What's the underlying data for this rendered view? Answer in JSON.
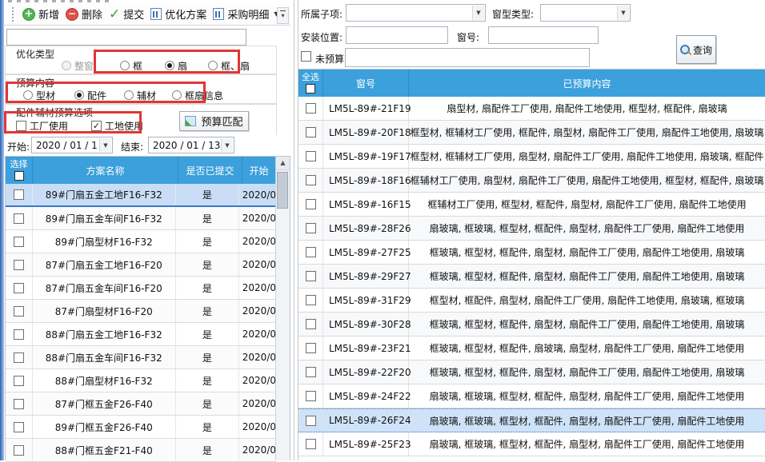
{
  "colors": {
    "header_blue": "#3BA0DB",
    "selected_row_blue": "#C9DEF6",
    "annotation_red": "#E23535",
    "add_green": "#53B553",
    "delete_red": "#E05048"
  },
  "left_panel": {
    "toolbar": {
      "items": [
        {
          "label": "新增",
          "icon": "add-icon"
        },
        {
          "label": "删除",
          "icon": "delete-icon"
        },
        {
          "label": "提交",
          "icon": "check-icon"
        },
        {
          "label": "优化方案",
          "icon": "report-icon"
        },
        {
          "label": "采购明细",
          "icon": "report-icon",
          "has_dropdown": true
        }
      ]
    },
    "filter_input": {
      "value": ""
    },
    "optimize_type": {
      "title": "优化类型",
      "options": [
        {
          "label": "整窗",
          "selected": false,
          "disabled": true
        },
        {
          "label": "框",
          "selected": false
        },
        {
          "label": "扇",
          "selected": true
        },
        {
          "label": "框、扇",
          "selected": false
        }
      ]
    },
    "budget_content": {
      "title": "预算内容",
      "options": [
        {
          "label": "型材",
          "selected": false
        },
        {
          "label": "配件",
          "selected": true
        },
        {
          "label": "辅材",
          "selected": false
        },
        {
          "label": "框扇信息",
          "selected": false
        }
      ]
    },
    "usage_options": {
      "title": "配件辅材预算选项",
      "checkboxes": [
        {
          "label": "工厂使用",
          "checked": false
        },
        {
          "label": "工地使用",
          "checked": true
        }
      ],
      "match_button_label": "预算匹配"
    },
    "date_range": {
      "start_label": "开始:",
      "start_value": "2020 / 01 / 1",
      "end_label": "结束:",
      "end_value": "2020 / 01 / 13"
    },
    "plan_table": {
      "headers": {
        "select": "选择",
        "name": "方案名称",
        "submitted": "是否已提交",
        "start": "开始"
      },
      "rows": [
        {
          "name": "89#门扇五金工地F16-F32",
          "submitted": "是",
          "start": "2020/0",
          "selected": true
        },
        {
          "name": "89#门扇五金车间F16-F32",
          "submitted": "是",
          "start": "2020/0"
        },
        {
          "name": "89#门扇型材F16-F32",
          "submitted": "是",
          "start": "2020/0"
        },
        {
          "name": "87#门扇五金工地F16-F20",
          "submitted": "是",
          "start": "2020/0"
        },
        {
          "name": "87#门扇五金车间F16-F20",
          "submitted": "是",
          "start": "2020/0"
        },
        {
          "name": "87#门扇型材F16-F20",
          "submitted": "是",
          "start": "2020/0"
        },
        {
          "name": "88#门扇五金工地F16-F32",
          "submitted": "是",
          "start": "2020/0"
        },
        {
          "name": "88#门扇五金车间F16-F32",
          "submitted": "是",
          "start": "2020/0"
        },
        {
          "name": "88#门扇型材F16-F32",
          "submitted": "是",
          "start": "2020/0"
        },
        {
          "name": "87#门框五金F26-F40",
          "submitted": "是",
          "start": "2020/0"
        },
        {
          "name": "89#门框五金F26-F40",
          "submitted": "是",
          "start": "2020/0"
        },
        {
          "name": "88#门框五金F21-F40",
          "submitted": "是",
          "start": "2020/0"
        }
      ]
    }
  },
  "right_panel": {
    "filters": {
      "sub_item_label": "所属子项:",
      "window_type_label": "窗型类型:",
      "install_pos_label": "安装位置:",
      "window_no_label": "窗号:",
      "no_budget_label": "未预算:",
      "sub_item_value": "",
      "window_type_value": "",
      "install_pos_value": "",
      "window_no_value": "",
      "no_budget_value": "",
      "query_button_label": "查询"
    },
    "window_table": {
      "headers": {
        "select_all": "全选",
        "window_no": "窗号",
        "budgeted": "已预算内容"
      },
      "rows": [
        {
          "no": "LM5L-89#-21F19",
          "content": "扇型材, 扇配件工厂使用, 扇配件工地使用, 框型材, 框配件, 扇玻璃"
        },
        {
          "no": "LM5L-89#-20F18",
          "content": "框型材, 框辅材工厂使用, 框配件, 扇型材, 扇配件工厂使用, 扇配件工地使用, 扇玻璃"
        },
        {
          "no": "LM5L-89#-19F17",
          "content": "框型材, 框辅材工厂使用, 扇型材, 扇配件工厂使用, 扇配件工地使用, 扇玻璃, 框配件"
        },
        {
          "no": "LM5L-89#-18F16",
          "content": "框辅材工厂使用, 扇型材, 扇配件工厂使用, 扇配件工地使用, 框型材, 框配件, 扇玻璃"
        },
        {
          "no": "LM5L-89#-16F15",
          "content": "框辅材工厂使用, 框型材, 框配件, 扇型材, 扇配件工厂使用, 扇配件工地使用"
        },
        {
          "no": "LM5L-89#-28F26",
          "content": "扇玻璃, 框玻璃, 框型材, 框配件, 扇型材, 扇配件工厂使用, 扇配件工地使用"
        },
        {
          "no": "LM5L-89#-27F25",
          "content": "框玻璃, 框型材, 框配件, 扇型材, 扇配件工厂使用, 扇配件工地使用, 扇玻璃"
        },
        {
          "no": "LM5L-89#-29F27",
          "content": "框玻璃, 框型材, 框配件, 扇型材, 扇配件工厂使用, 扇配件工地使用, 扇玻璃"
        },
        {
          "no": "LM5L-89#-31F29",
          "content": "框型材, 框配件, 扇型材, 扇配件工厂使用, 扇配件工地使用, 扇玻璃, 框玻璃"
        },
        {
          "no": "LM5L-89#-30F28",
          "content": "框玻璃, 框型材, 框配件, 扇型材, 扇配件工厂使用, 扇配件工地使用, 扇玻璃"
        },
        {
          "no": "LM5L-89#-23F21",
          "content": "框玻璃, 框型材, 框配件, 扇玻璃, 扇型材, 扇配件工厂使用, 扇配件工地使用"
        },
        {
          "no": "LM5L-89#-22F20",
          "content": "框玻璃, 框型材, 框配件, 扇型材, 扇配件工厂使用, 扇配件工地使用, 扇玻璃"
        },
        {
          "no": "LM5L-89#-24F22",
          "content": "扇玻璃, 框玻璃, 框型材, 框配件, 扇型材, 扇配件工厂使用, 扇配件工地使用"
        },
        {
          "no": "LM5L-89#-26F24",
          "content": "扇玻璃, 框玻璃, 框型材, 框配件, 扇型材, 扇配件工厂使用, 扇配件工地使用",
          "selected": true
        },
        {
          "no": "LM5L-89#-25F23",
          "content": "扇玻璃, 框玻璃, 框型材, 框配件, 扇型材, 扇配件工厂使用, 扇配件工地使用"
        }
      ]
    }
  }
}
